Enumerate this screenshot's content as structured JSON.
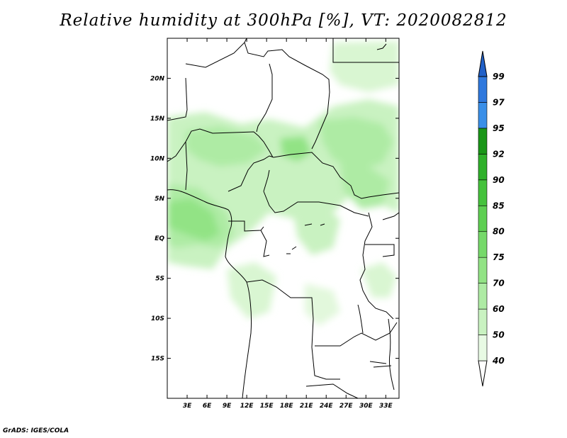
{
  "title": "Relative humidity at 300hPa [%], VT: 2020082812",
  "credit": "GrADS: IGES/COLA",
  "map": {
    "variable": "Relative humidity",
    "level": "300hPa",
    "units": "%",
    "valid_time": "2020082812",
    "lon_range": [
      0,
      35
    ],
    "lat_range": [
      -20,
      25
    ],
    "lon_ticks": [
      "3E",
      "6E",
      "9E",
      "12E",
      "15E",
      "18E",
      "21E",
      "24E",
      "27E",
      "30E",
      "33E"
    ],
    "lat_ticks": [
      "20N",
      "15N",
      "10N",
      "5N",
      "EQ",
      "5S",
      "10S",
      "15S"
    ]
  },
  "colorbar": {
    "levels": [
      "40",
      "50",
      "60",
      "70",
      "75",
      "80",
      "85",
      "90",
      "92",
      "95",
      "97",
      "99"
    ],
    "colors": [
      "#e8fae4",
      "#c9f2c1",
      "#aeeba4",
      "#92e385",
      "#76d96a",
      "#5ecf52",
      "#45c23c",
      "#2fb02a",
      "#1a9618",
      "#3a8fe8",
      "#2f78dd",
      "#2060c8"
    ]
  }
}
